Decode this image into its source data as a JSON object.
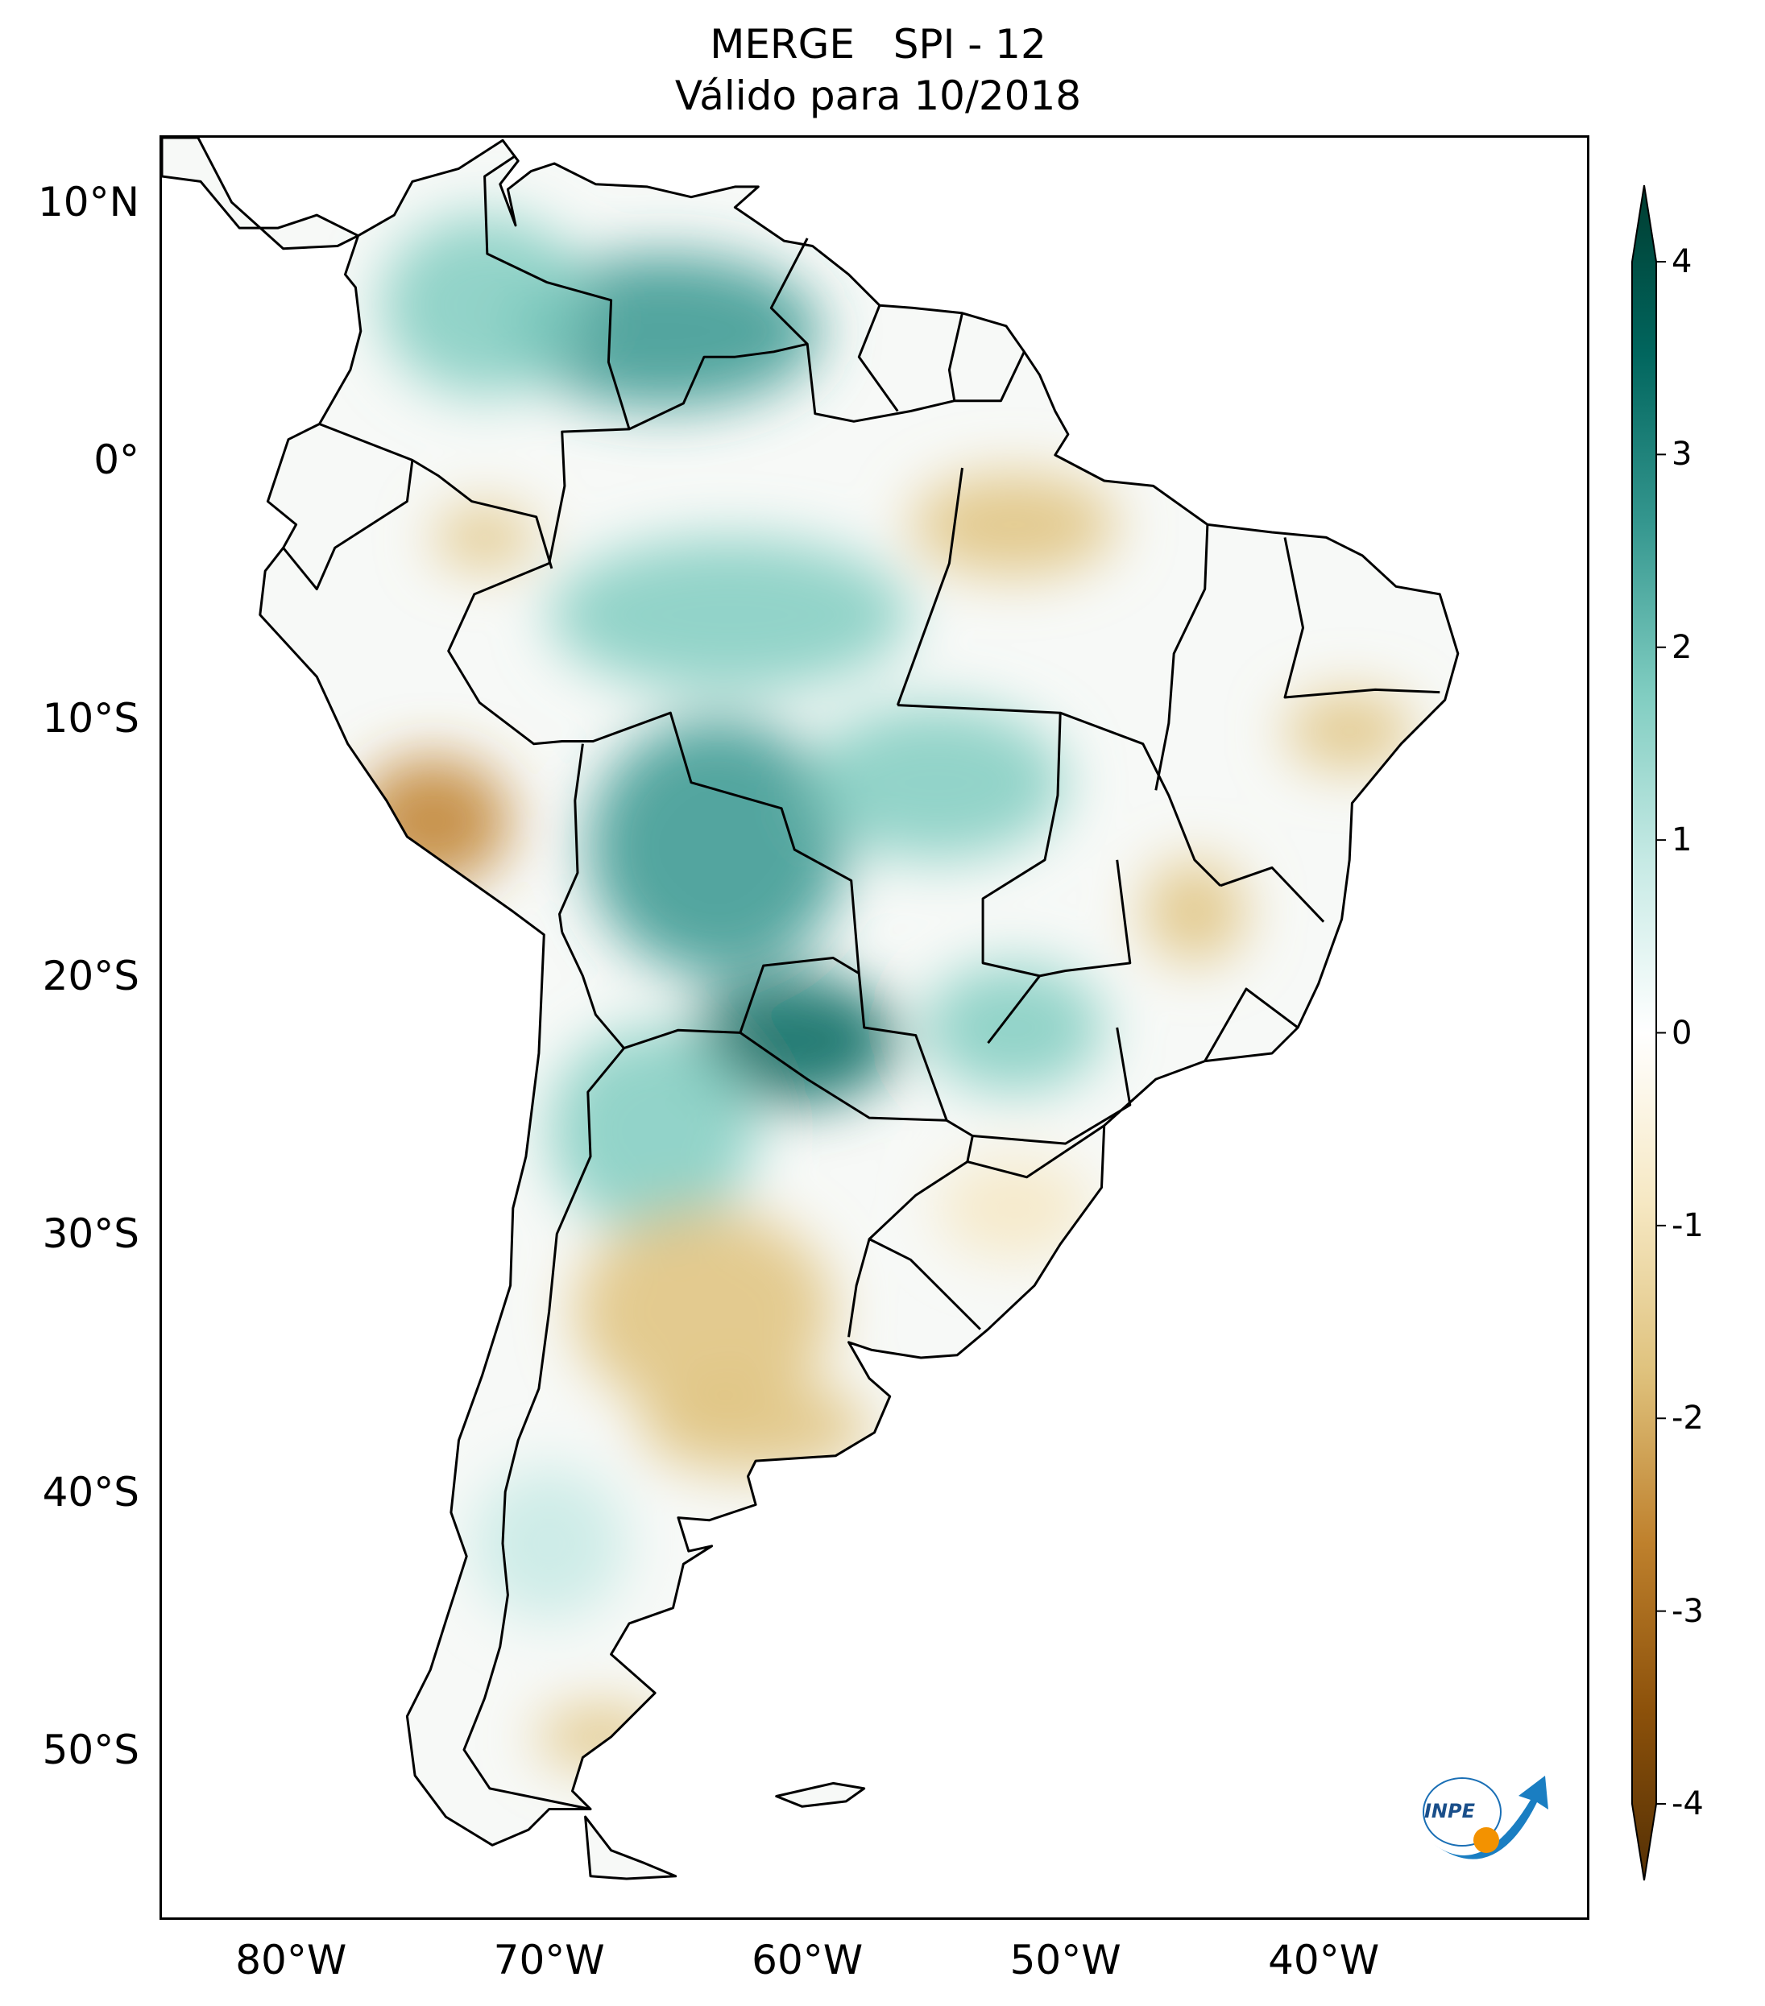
{
  "title": {
    "line1": "MERGE   SPI - 12",
    "line2": "Válido para 10/2018"
  },
  "map": {
    "extent": {
      "lon_min": -85,
      "lon_max": -29.8,
      "lat_min": -56.5,
      "lat_max": 12.5
    },
    "lat_ticks": [
      {
        "value": 10,
        "label": "10°N"
      },
      {
        "value": 0,
        "label": "0°"
      },
      {
        "value": -10,
        "label": "10°S"
      },
      {
        "value": -20,
        "label": "20°S"
      },
      {
        "value": -30,
        "label": "30°S"
      },
      {
        "value": -40,
        "label": "40°S"
      },
      {
        "value": -50,
        "label": "50°S"
      }
    ],
    "lon_ticks": [
      {
        "value": -80,
        "label": "80°W"
      },
      {
        "value": -70,
        "label": "70°W"
      },
      {
        "value": -60,
        "label": "60°W"
      },
      {
        "value": -50,
        "label": "50°W"
      },
      {
        "value": -40,
        "label": "40°W"
      }
    ],
    "spi_regions": [
      {
        "name": "north-colombia-venezuela-wet",
        "lon": -65.5,
        "lat": 5,
        "rx": 6,
        "ry": 3,
        "spi": 2.6
      },
      {
        "name": "colombia-wet",
        "lon": -72.5,
        "lat": 6,
        "rx": 4,
        "ry": 3.5,
        "spi": 1.8
      },
      {
        "name": "amazonas-wet",
        "lon": -63,
        "lat": -6,
        "rx": 7,
        "ry": 3,
        "spi": 1.4
      },
      {
        "name": "bolivia-wet",
        "lon": -63.5,
        "lat": -15,
        "rx": 5,
        "ry": 5,
        "spi": 2.2
      },
      {
        "name": "paraguay-wet",
        "lon": -60.5,
        "lat": -22.5,
        "rx": 4,
        "ry": 2.5,
        "spi": 2.8
      },
      {
        "name": "mato-grosso-wet",
        "lon": -55,
        "lat": -12.5,
        "rx": 5,
        "ry": 3,
        "spi": 1.2
      },
      {
        "name": "ms-sp-wet",
        "lon": -52,
        "lat": -22,
        "rx": 3.5,
        "ry": 2.5,
        "spi": 1.5
      },
      {
        "name": "north-argentina-wet",
        "lon": -66,
        "lat": -26,
        "rx": 4,
        "ry": 4,
        "spi": 1.3
      },
      {
        "name": "patagonia-wet",
        "lon": -70,
        "lat": -42,
        "rx": 3,
        "ry": 3,
        "spi": 1.0
      },
      {
        "name": "peru-dry",
        "lon": -74.5,
        "lat": -14,
        "rx": 3,
        "ry": 2.5,
        "spi": -2.2
      },
      {
        "name": "ecuador-peru-dry",
        "lon": -72.5,
        "lat": -3,
        "rx": 2,
        "ry": 1.2,
        "spi": -1.9
      },
      {
        "name": "para-dry",
        "lon": -52,
        "lat": -2.5,
        "rx": 4,
        "ry": 2,
        "spi": -1.6
      },
      {
        "name": "bahia-dry",
        "lon": -39,
        "lat": -10.5,
        "rx": 2.5,
        "ry": 1.5,
        "spi": -2.0
      },
      {
        "name": "minas-dry",
        "lon": -45,
        "lat": -17.5,
        "rx": 2,
        "ry": 2,
        "spi": -1.3
      },
      {
        "name": "central-argentina-dry",
        "lon": -64,
        "lat": -33,
        "rx": 5,
        "ry": 4,
        "spi": -1.5
      },
      {
        "name": "pampas-dry",
        "lon": -62,
        "lat": -37.5,
        "rx": 4.5,
        "ry": 1.8,
        "spi": -1.9
      },
      {
        "name": "patagonia-south-dry",
        "lon": -68,
        "lat": -49.5,
        "rx": 2.5,
        "ry": 1.2,
        "spi": -1.5
      },
      {
        "name": "rio-grande-do-sul-dry",
        "lon": -52,
        "lat": -29,
        "rx": 3,
        "ry": 2,
        "spi": -0.9
      }
    ]
  },
  "colorbar": {
    "min": -4,
    "max": 4,
    "ticks": [
      {
        "value": 4,
        "label": "4"
      },
      {
        "value": 3,
        "label": "3"
      },
      {
        "value": 2,
        "label": "2"
      },
      {
        "value": 1,
        "label": "1"
      },
      {
        "value": 0,
        "label": "0"
      },
      {
        "value": -1,
        "label": "-1"
      },
      {
        "value": -2,
        "label": "-2"
      },
      {
        "value": -3,
        "label": "-3"
      },
      {
        "value": -4,
        "label": "-4"
      }
    ],
    "colors": [
      "#543005",
      "#8c510a",
      "#bf812d",
      "#dfc27d",
      "#f6e8c3",
      "#ffffff",
      "#c7eae5",
      "#80cdc1",
      "#35978f",
      "#01665e",
      "#003c30"
    ]
  },
  "logo": {
    "text": "INPE"
  }
}
